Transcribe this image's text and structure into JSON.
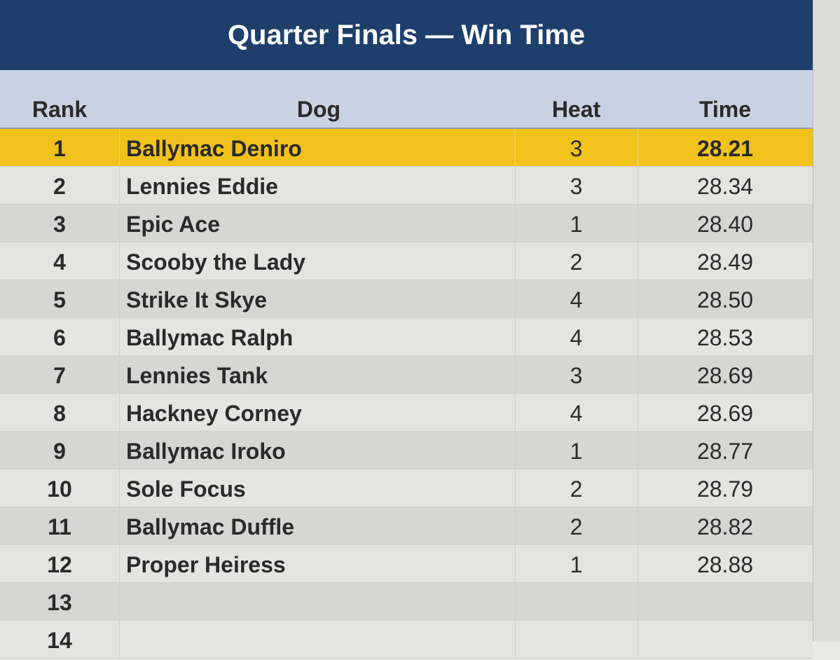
{
  "header": {
    "title": "Quarter Finals — Win Time"
  },
  "table": {
    "columns": [
      "Rank",
      "Dog",
      "Heat",
      "Time"
    ],
    "rows": [
      [
        1,
        "Ballymac Deniro",
        3,
        "28.21"
      ],
      [
        2,
        "Lennies Eddie",
        3,
        "28.34"
      ],
      [
        3,
        "Epic Ace",
        1,
        "28.40"
      ],
      [
        4,
        "Scooby the Lady",
        2,
        "28.49"
      ],
      [
        5,
        "Strike It Skye",
        4,
        "28.50"
      ],
      [
        6,
        "Ballymac Ralph",
        4,
        "28.53"
      ],
      [
        7,
        "Lennies Tank",
        3,
        "28.69"
      ],
      [
        8,
        "Hackney Corney",
        4,
        "28.69"
      ],
      [
        9,
        "Ballymac Iroko",
        1,
        "28.77"
      ],
      [
        10,
        "Sole Focus",
        2,
        "28.79"
      ],
      [
        11,
        "Ballymac Duffle",
        2,
        "28.82"
      ],
      [
        12,
        "Proper Heiress",
        1,
        "28.88"
      ],
      [
        13
      ],
      [
        14
      ]
    ]
  }
}
